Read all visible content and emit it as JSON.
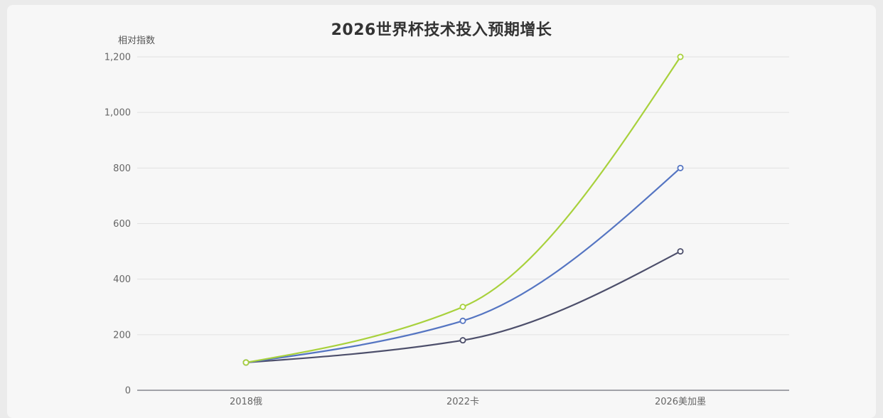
{
  "chart_data": {
    "type": "line",
    "title": "2026世界杯技术投入预期增长",
    "ylabel": "相对指数",
    "xlabel": "",
    "categories": [
      "2018俄",
      "2022卡",
      "2026美加墨"
    ],
    "ylim": [
      0,
      1200
    ],
    "yticks": [
      0,
      200,
      400,
      600,
      800,
      1000,
      1200
    ],
    "ytick_labels": [
      "0",
      "200",
      "400",
      "600",
      "800",
      "1,000",
      "1,200"
    ],
    "grid": true,
    "smooth": true,
    "series": [
      {
        "values": [
          100,
          300,
          1200
        ],
        "color": "#a8d13c"
      },
      {
        "values": [
          100,
          250,
          800
        ],
        "color": "#5575c2"
      },
      {
        "values": [
          100,
          180,
          500
        ],
        "color": "#4d4f6b"
      }
    ]
  },
  "colors": {
    "grid": "#e2e2e2",
    "axis": "#6e7079",
    "marker_fill": "#ffffff"
  }
}
